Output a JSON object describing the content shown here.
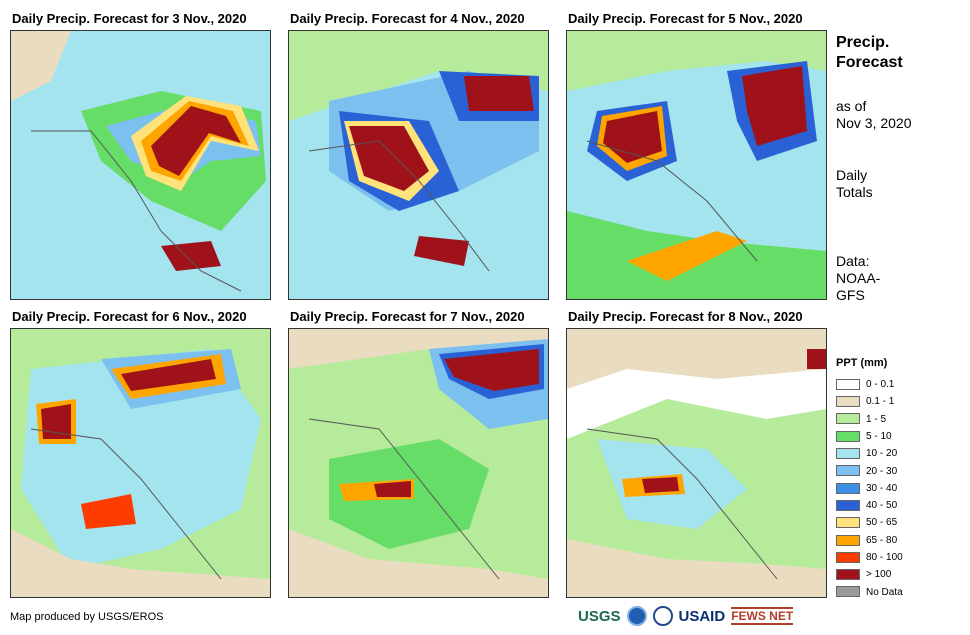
{
  "panels": [
    {
      "title": "Daily Precip. Forecast for 3 Nov., 2020"
    },
    {
      "title": "Daily Precip. Forecast for 4 Nov., 2020"
    },
    {
      "title": "Daily Precip. Forecast for 5 Nov., 2020"
    },
    {
      "title": "Daily Precip. Forecast for 6 Nov., 2020"
    },
    {
      "title": "Daily Precip. Forecast for 7 Nov., 2020"
    },
    {
      "title": "Daily Precip. Forecast for 8 Nov., 2020"
    }
  ],
  "side": {
    "title1": "Precip.",
    "title2": "Forecast",
    "asof1": "as of",
    "asof2": "Nov 3, 2020",
    "daily1": "Daily",
    "daily2": "Totals",
    "data1": "Data:",
    "data2": "NOAA-",
    "data3": "GFS"
  },
  "legend": {
    "title": "PPT (mm)",
    "items": [
      {
        "label": "0 - 0.1",
        "color": "#ffffff"
      },
      {
        "label": "0.1 - 1",
        "color": "#e9dcc0"
      },
      {
        "label": "1 - 5",
        "color": "#b5eb9a"
      },
      {
        "label": "5 - 10",
        "color": "#66dd66"
      },
      {
        "label": "10 - 20",
        "color": "#a3e4ef"
      },
      {
        "label": "20 - 30",
        "color": "#7cc0f0"
      },
      {
        "label": "30 - 40",
        "color": "#3d8fe8"
      },
      {
        "label": "40 - 50",
        "color": "#2a62d6"
      },
      {
        "label": "50 - 65",
        "color": "#ffe37a"
      },
      {
        "label": "65 - 80",
        "color": "#ffa500"
      },
      {
        "label": "80 - 100",
        "color": "#ff3c00"
      },
      {
        "label": "> 100",
        "color": "#a0121a"
      },
      {
        "label": "No Data",
        "color": "#9a9a9a"
      }
    ]
  },
  "credit": "Map produced by USGS/EROS",
  "logos": {
    "usgs": "USGS",
    "usaid": "USAID",
    "fews": "FEWS NET"
  }
}
